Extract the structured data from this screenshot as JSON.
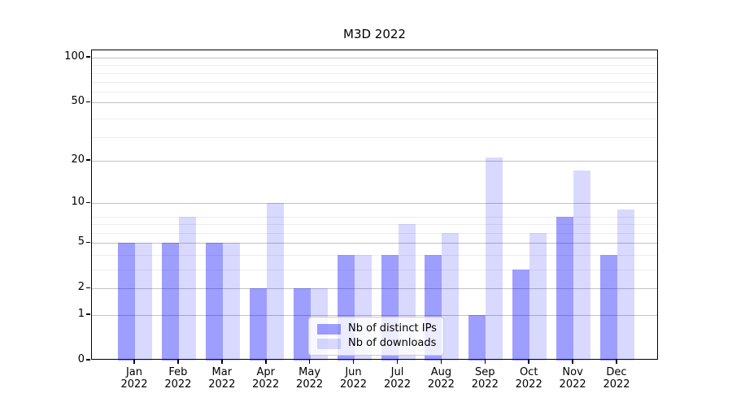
{
  "chart_data": {
    "type": "bar",
    "title": "M3D 2022",
    "x_year": "2022",
    "categories": [
      "Jan",
      "Feb",
      "Mar",
      "Apr",
      "May",
      "Jun",
      "Jul",
      "Aug",
      "Sep",
      "Oct",
      "Nov",
      "Dec"
    ],
    "series": [
      {
        "name": "Nb of distinct IPs",
        "color": "rgba(0,0,255,0.38)",
        "color_hex": "#9e9ef6",
        "values": [
          5,
          5,
          5,
          2,
          2,
          4,
          4,
          4,
          1,
          3,
          8,
          4
        ]
      },
      {
        "name": "Nb of downloads",
        "color": "rgba(0,0,255,0.15)",
        "color_hex": "#d9d9fb",
        "values": [
          5,
          8,
          5,
          10,
          2,
          4,
          7,
          6,
          21,
          6,
          17,
          9
        ]
      }
    ],
    "y_scale": "log10(1+value)",
    "y_ticks": [
      0,
      1,
      2,
      5,
      10,
      20,
      50,
      100
    ],
    "y_minor_gridlines_at": [
      3,
      4,
      6,
      7,
      8,
      29,
      39,
      59,
      69,
      79,
      89
    ],
    "ylim": [
      0,
      112
    ],
    "xlabel": "",
    "ylabel": "",
    "grid": true,
    "legend_position": "lower center"
  }
}
